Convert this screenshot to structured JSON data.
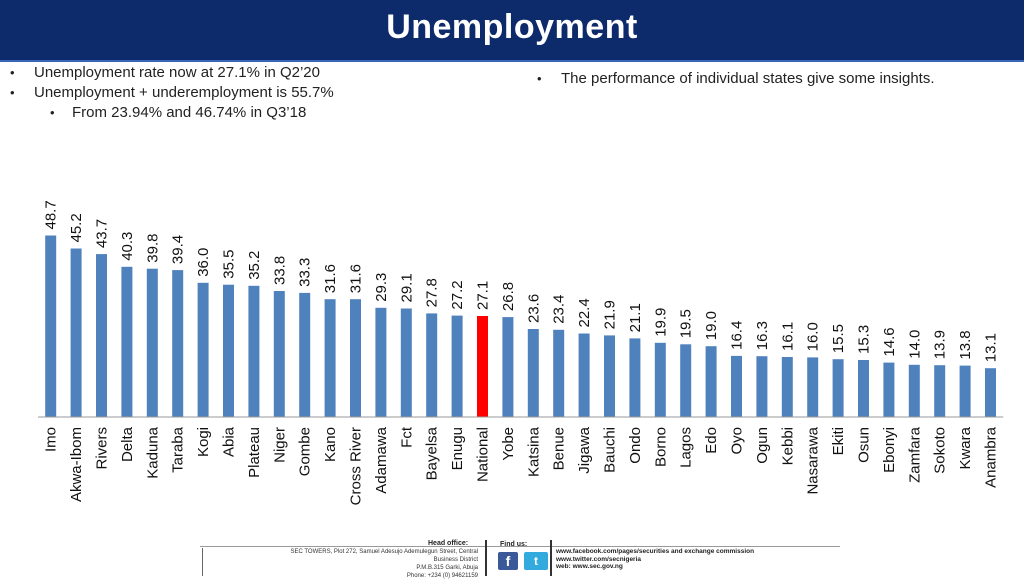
{
  "header": {
    "title": "Unemployment"
  },
  "bullets_left": [
    {
      "text": "Unemployment rate now at 27.1% in Q2’20",
      "level": 1
    },
    {
      "text": "Unemployment + underemployment is 55.7%",
      "level": 1
    },
    {
      "text": "From 23.94% and 46.74% in Q3’18",
      "level": 2
    }
  ],
  "bullets_right": [
    {
      "text": "The performance of individual states give some insights.",
      "level": 1
    }
  ],
  "bullet_glyph": "•",
  "chart_data": {
    "type": "bar",
    "title": "",
    "xlabel": "",
    "ylabel": "",
    "ylim": [
      0,
      55
    ],
    "grid": false,
    "legend": "none",
    "bar_color": "#4f81bd",
    "highlight_color": "#ff0000",
    "highlight_category": "National",
    "categories": [
      "Imo",
      "Akwa-Ibom",
      "Rivers",
      "Delta",
      "Kaduna",
      "Taraba",
      "Kogi",
      "Abia",
      "Plateau",
      "Niger",
      "Gombe",
      "Kano",
      "Cross River",
      "Adamawa",
      "Fct",
      "Bayelsa",
      "Enugu",
      "National",
      "Yobe",
      "Katsina",
      "Benue",
      "Jigawa",
      "Bauchi",
      "Ondo",
      "Borno",
      "Lagos",
      "Edo",
      "Oyo",
      "Ogun",
      "Kebbi",
      "Nasarawa",
      "Ekiti",
      "Osun",
      "Ebonyi",
      "Zamfara",
      "Sokoto",
      "Kwara",
      "Anambra"
    ],
    "values": [
      48.7,
      45.2,
      43.7,
      40.3,
      39.8,
      39.4,
      36.0,
      35.5,
      35.2,
      33.8,
      33.3,
      31.6,
      31.6,
      29.3,
      29.1,
      27.8,
      27.2,
      27.1,
      26.8,
      23.6,
      23.4,
      22.4,
      21.9,
      21.1,
      19.9,
      19.5,
      19.0,
      16.4,
      16.3,
      16.1,
      16.0,
      15.5,
      15.3,
      14.6,
      14.0,
      13.9,
      13.8,
      13.1
    ],
    "value_labels": [
      "48.7",
      "45.2",
      "43.7",
      "40.3",
      "39.8",
      "39.4",
      "36.0",
      "35.5",
      "35.2",
      "33.8",
      "33.3",
      "31.6",
      "31.6",
      "29.3",
      "29.1",
      "27.8",
      "27.2",
      "27.1",
      "26.8",
      "23.6",
      "23.4",
      "22.4",
      "21.9",
      "21.1",
      "19.9",
      "19.5",
      "19.0",
      "16.4",
      "16.3",
      "16.1",
      "16.0",
      "15.5",
      "15.3",
      "14.6",
      "14.0",
      "13.9",
      "13.8",
      "13.1"
    ]
  },
  "footer": {
    "head_office_label": "Head office:",
    "address_lines": [
      "SEC TOWERS, Plot 272, Samuel Adesujo Ademulegun Street, Central",
      "Business District",
      "P.M.B.315 Garki, Abuja",
      "Phone: +234 (0) 94621159"
    ],
    "find_us_label": "Find us:",
    "facebook_icon": "facebook-icon",
    "twitter_icon": "twitter-icon",
    "links": [
      "www.facebook.com/pages/securities and exchange commission",
      "www.twitter.com/secnigeria",
      "web: www.sec.gov.ng"
    ]
  }
}
